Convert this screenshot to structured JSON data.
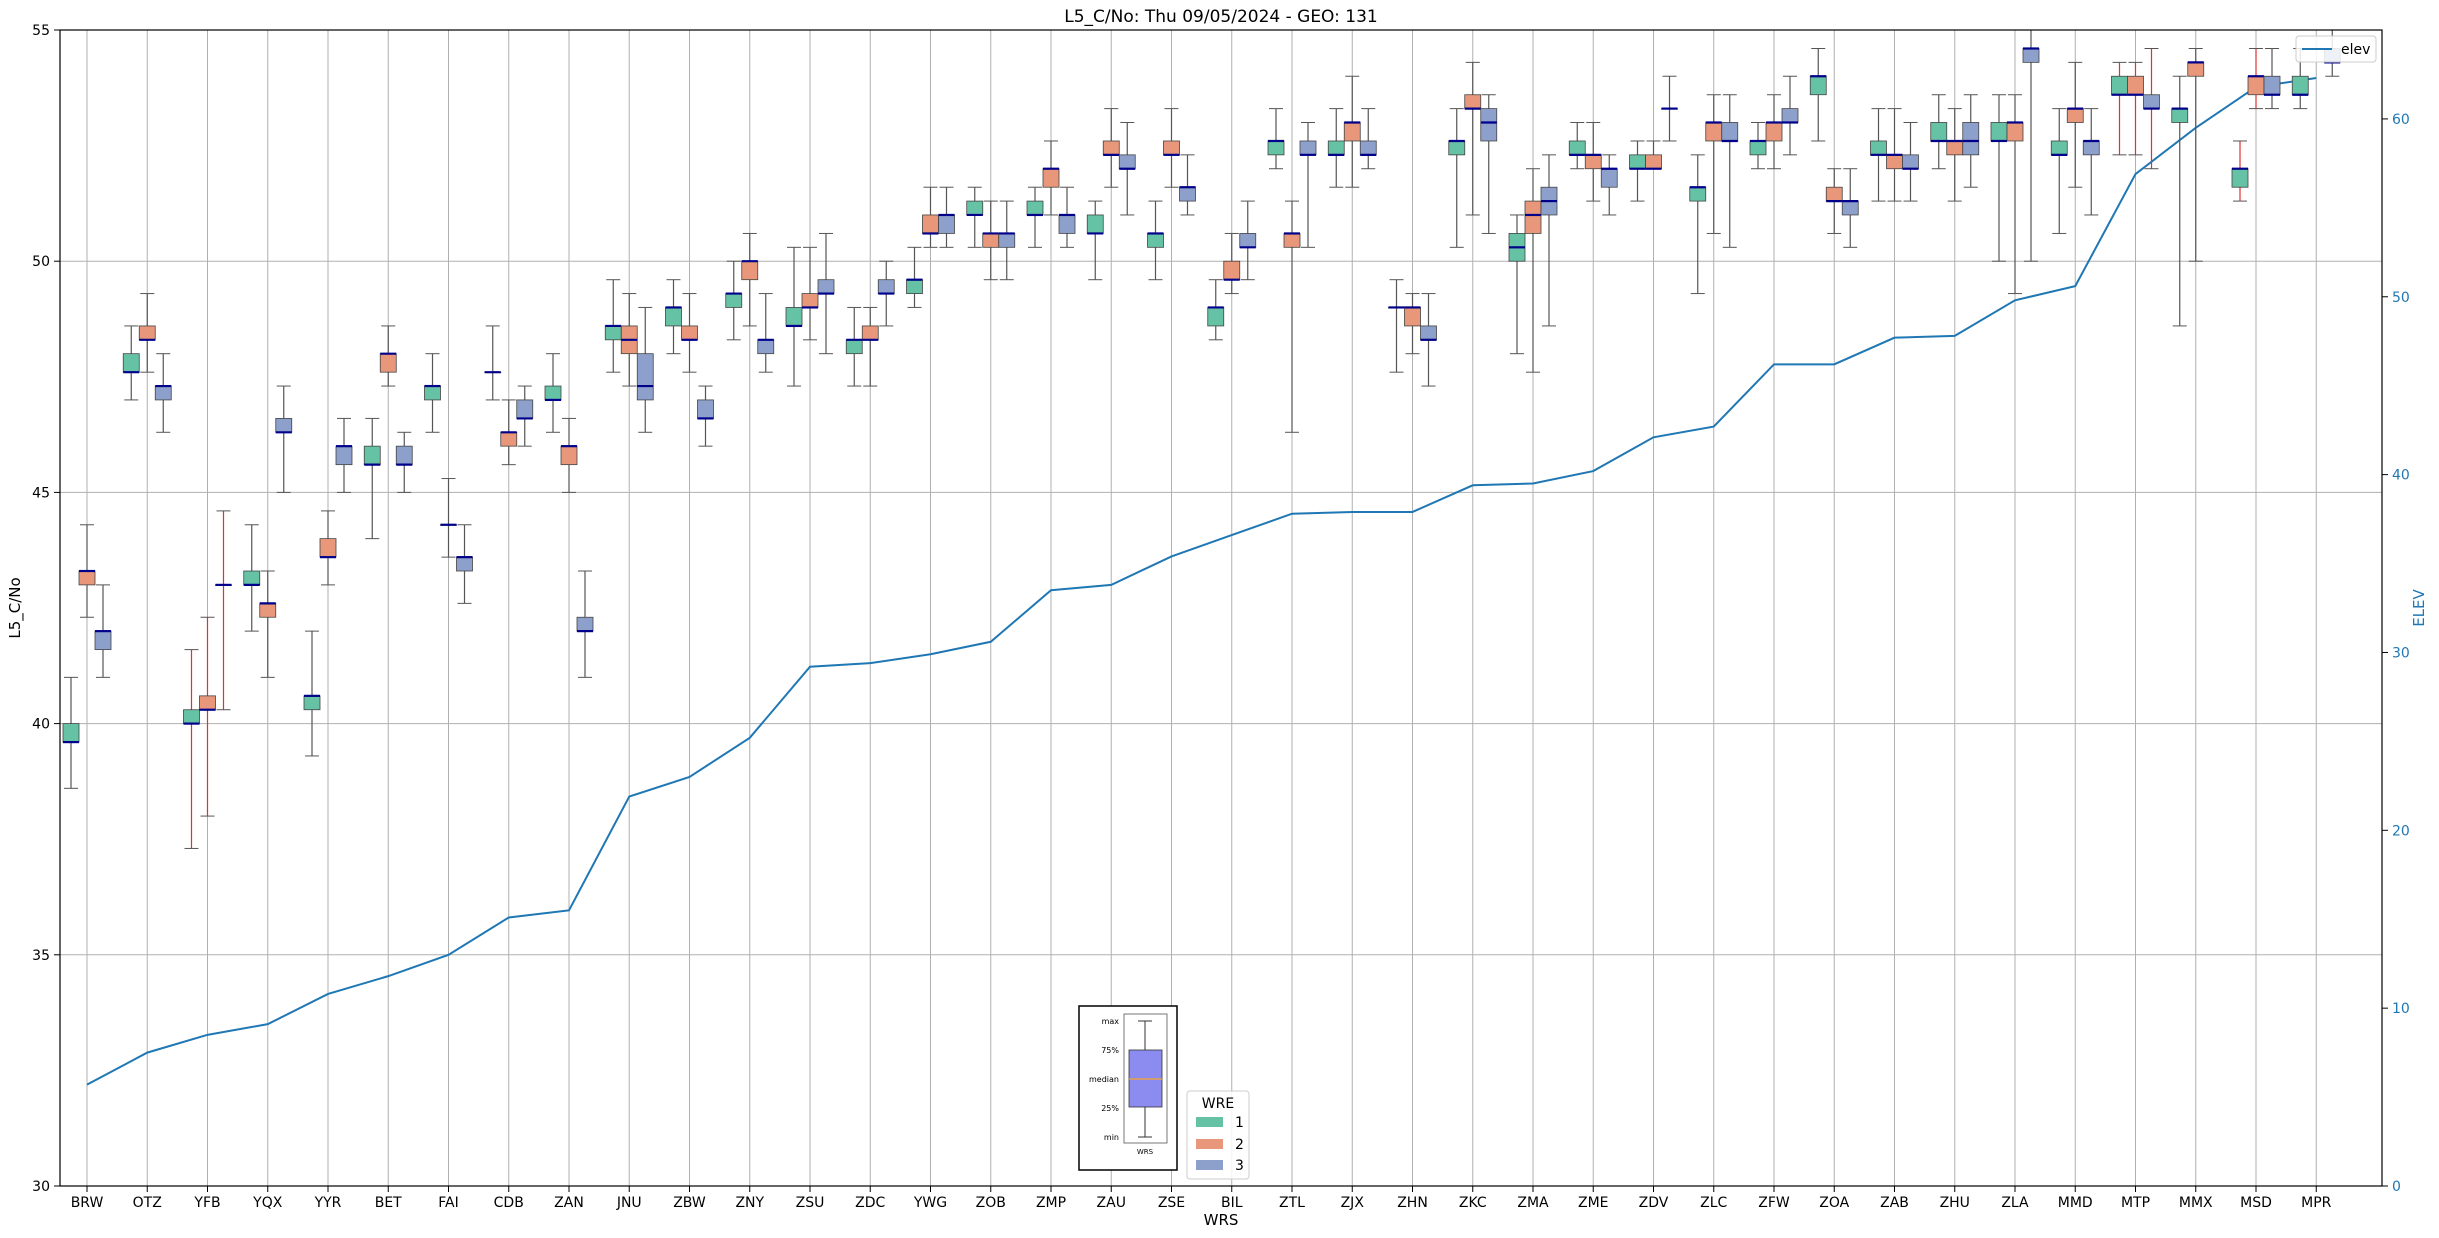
{
  "chart_data": {
    "type": "box",
    "title": "L5_C/No: Thu 09/05/2024 - GEO: 131",
    "xlabel": "WRS",
    "ylabel": "L5_C/No",
    "y2label": "ELEV",
    "ylim": [
      30,
      55
    ],
    "y2lim": [
      0,
      65
    ],
    "yticks": [
      30,
      35,
      40,
      45,
      50,
      55
    ],
    "y2ticks": [
      0,
      10,
      20,
      30,
      40,
      50,
      60
    ],
    "grid": true,
    "categories": [
      "BRW",
      "OTZ",
      "YFB",
      "YQX",
      "YYR",
      "BET",
      "FAI",
      "CDB",
      "ZAN",
      "JNU",
      "ZBW",
      "ZNY",
      "ZSU",
      "ZDC",
      "YWG",
      "ZOB",
      "ZMP",
      "ZAU",
      "ZSE",
      "BIL",
      "ZTL",
      "ZJX",
      "ZHN",
      "ZKC",
      "ZMA",
      "ZME",
      "ZDV",
      "ZLC",
      "ZFW",
      "ZOA",
      "ZAB",
      "ZHU",
      "ZLA",
      "MMD",
      "MTP",
      "MMX",
      "MSD",
      "MPR"
    ],
    "series": [
      {
        "name": "1",
        "color": "#66c2a5",
        "boxes": [
          {
            "min": 38.6,
            "q1": 39.6,
            "med": 39.6,
            "q3": 40.0,
            "max": 41.0
          },
          {
            "min": 47.0,
            "q1": 47.6,
            "med": 47.6,
            "q3": 48.0,
            "max": 48.6
          },
          {
            "min": 37.3,
            "q1": 40.0,
            "med": 40.0,
            "q3": 40.3,
            "max": 41.6,
            "whisker_color": "#e03030"
          },
          {
            "min": 42.0,
            "q1": 43.0,
            "med": 43.0,
            "q3": 43.3,
            "max": 44.3
          },
          {
            "min": 39.3,
            "q1": 40.3,
            "med": 40.6,
            "q3": 40.6,
            "max": 42.0
          },
          {
            "min": 44.0,
            "q1": 45.6,
            "med": 45.6,
            "q3": 46.0,
            "max": 46.6
          },
          {
            "min": 46.3,
            "q1": 47.0,
            "med": 47.3,
            "q3": 47.3,
            "max": 48.0
          },
          {
            "min": 47.0,
            "q1": 47.6,
            "med": 47.6,
            "q3": 47.6,
            "max": 48.6
          },
          {
            "min": 46.3,
            "q1": 47.0,
            "med": 47.0,
            "q3": 47.3,
            "max": 48.0
          },
          {
            "min": 47.6,
            "q1": 48.3,
            "med": 48.6,
            "q3": 48.6,
            "max": 49.6
          },
          {
            "min": 48.0,
            "q1": 48.6,
            "med": 49.0,
            "q3": 49.0,
            "max": 49.6
          },
          {
            "min": 48.3,
            "q1": 49.0,
            "med": 49.3,
            "q3": 49.3,
            "max": 50.0
          },
          {
            "min": 47.3,
            "q1": 48.6,
            "med": 48.6,
            "q3": 49.0,
            "max": 50.3
          },
          {
            "min": 47.3,
            "q1": 48.0,
            "med": 48.3,
            "q3": 48.3,
            "max": 49.0
          },
          {
            "min": 49.0,
            "q1": 49.3,
            "med": 49.6,
            "q3": 49.6,
            "max": 50.3
          },
          {
            "min": 50.3,
            "q1": 51.0,
            "med": 51.0,
            "q3": 51.3,
            "max": 51.6
          },
          {
            "min": 50.3,
            "q1": 51.0,
            "med": 51.0,
            "q3": 51.3,
            "max": 51.6
          },
          {
            "min": 49.6,
            "q1": 50.6,
            "med": 50.6,
            "q3": 51.0,
            "max": 51.3
          },
          {
            "min": 49.6,
            "q1": 50.3,
            "med": 50.6,
            "q3": 50.6,
            "max": 51.3
          },
          {
            "min": 48.3,
            "q1": 48.6,
            "med": 49.0,
            "q3": 49.0,
            "max": 49.6
          },
          {
            "min": 52.0,
            "q1": 52.3,
            "med": 52.6,
            "q3": 52.6,
            "max": 53.3
          },
          {
            "min": 51.6,
            "q1": 52.3,
            "med": 52.3,
            "q3": 52.6,
            "max": 53.3
          },
          {
            "min": 47.6,
            "q1": 49.0,
            "med": 49.0,
            "q3": 49.0,
            "max": 49.6
          },
          {
            "min": 50.3,
            "q1": 52.3,
            "med": 52.6,
            "q3": 52.6,
            "max": 53.3
          },
          {
            "min": 48.0,
            "q1": 50.0,
            "med": 50.3,
            "q3": 50.6,
            "max": 51.0
          },
          {
            "min": 52.0,
            "q1": 52.3,
            "med": 52.3,
            "q3": 52.6,
            "max": 53.0
          },
          {
            "min": 51.3,
            "q1": 52.0,
            "med": 52.0,
            "q3": 52.3,
            "max": 52.6
          },
          {
            "min": 49.3,
            "q1": 51.3,
            "med": 51.6,
            "q3": 51.6,
            "max": 52.3
          },
          {
            "min": 52.0,
            "q1": 52.3,
            "med": 52.6,
            "q3": 52.6,
            "max": 53.0
          },
          {
            "min": 52.6,
            "q1": 53.6,
            "med": 54.0,
            "q3": 54.0,
            "max": 54.6
          },
          {
            "min": 51.3,
            "q1": 52.3,
            "med": 52.3,
            "q3": 52.6,
            "max": 53.3
          },
          {
            "min": 52.0,
            "q1": 52.6,
            "med": 52.6,
            "q3": 53.0,
            "max": 53.6
          },
          {
            "min": 50.0,
            "q1": 52.6,
            "med": 52.6,
            "q3": 53.0,
            "max": 53.6
          },
          {
            "min": 50.6,
            "q1": 52.3,
            "med": 52.3,
            "q3": 52.6,
            "max": 53.3
          },
          {
            "min": 52.3,
            "q1": 53.6,
            "med": 53.6,
            "q3": 54.0,
            "max": 54.3,
            "whisker_color": "#e03030"
          },
          {
            "min": 48.6,
            "q1": 53.0,
            "med": 53.3,
            "q3": 53.3,
            "max": 54.0
          },
          {
            "min": 51.3,
            "q1": 51.6,
            "med": 52.0,
            "q3": 52.0,
            "max": 52.6,
            "whisker_color": "#e03030"
          },
          {
            "min": 53.3,
            "q1": 53.6,
            "med": 53.6,
            "q3": 54.0,
            "max": 54.6
          }
        ]
      },
      {
        "name": "2",
        "color": "#e8977a",
        "boxes": [
          {
            "min": 42.3,
            "q1": 43.0,
            "med": 43.3,
            "q3": 43.3,
            "max": 44.3
          },
          {
            "min": 47.6,
            "q1": 48.3,
            "med": 48.3,
            "q3": 48.6,
            "max": 49.3
          },
          {
            "min": 38.0,
            "q1": 40.3,
            "med": 40.3,
            "q3": 40.6,
            "max": 42.3,
            "whisker_color": "#e03030"
          },
          {
            "min": 41.0,
            "q1": 42.3,
            "med": 42.6,
            "q3": 42.6,
            "max": 43.3
          },
          {
            "min": 43.0,
            "q1": 43.6,
            "med": 43.6,
            "q3": 44.0,
            "max": 44.6
          },
          {
            "min": 47.3,
            "q1": 47.6,
            "med": 48.0,
            "q3": 48.0,
            "max": 48.6
          },
          {
            "min": 43.6,
            "q1": 44.3,
            "med": 44.3,
            "q3": 44.3,
            "max": 45.3
          },
          {
            "min": 45.6,
            "q1": 46.0,
            "med": 46.3,
            "q3": 46.3,
            "max": 47.0
          },
          {
            "min": 45.0,
            "q1": 45.6,
            "med": 46.0,
            "q3": 46.0,
            "max": 46.6
          },
          {
            "min": 47.3,
            "q1": 48.0,
            "med": 48.3,
            "q3": 48.6,
            "max": 49.3
          },
          {
            "min": 47.6,
            "q1": 48.3,
            "med": 48.3,
            "q3": 48.6,
            "max": 49.3
          },
          {
            "min": 48.6,
            "q1": 49.6,
            "med": 50.0,
            "q3": 50.0,
            "max": 50.6
          },
          {
            "min": 48.3,
            "q1": 49.0,
            "med": 49.0,
            "q3": 49.3,
            "max": 50.3
          },
          {
            "min": 47.3,
            "q1": 48.3,
            "med": 48.3,
            "q3": 48.6,
            "max": 49.0
          },
          {
            "min": 50.3,
            "q1": 50.6,
            "med": 50.6,
            "q3": 51.0,
            "max": 51.6
          },
          {
            "min": 49.6,
            "q1": 50.3,
            "med": 50.6,
            "q3": 50.6,
            "max": 51.3
          },
          {
            "min": 51.0,
            "q1": 51.6,
            "med": 52.0,
            "q3": 52.0,
            "max": 52.6
          },
          {
            "min": 51.6,
            "q1": 52.3,
            "med": 52.3,
            "q3": 52.6,
            "max": 53.3
          },
          {
            "min": 51.6,
            "q1": 52.3,
            "med": 52.3,
            "q3": 52.6,
            "max": 53.3
          },
          {
            "min": 49.3,
            "q1": 49.6,
            "med": 49.6,
            "q3": 50.0,
            "max": 50.6
          },
          {
            "min": 46.3,
            "q1": 50.3,
            "med": 50.6,
            "q3": 50.6,
            "max": 51.3
          },
          {
            "min": 51.6,
            "q1": 52.6,
            "med": 53.0,
            "q3": 53.0,
            "max": 54.0
          },
          {
            "min": 48.0,
            "q1": 48.6,
            "med": 49.0,
            "q3": 49.0,
            "max": 49.3
          },
          {
            "min": 51.0,
            "q1": 53.3,
            "med": 53.3,
            "q3": 53.6,
            "max": 54.3
          },
          {
            "min": 47.6,
            "q1": 50.6,
            "med": 51.0,
            "q3": 51.3,
            "max": 52.0
          },
          {
            "min": 51.3,
            "q1": 52.0,
            "med": 52.3,
            "q3": 52.3,
            "max": 53.0
          },
          {
            "min": 52.0,
            "q1": 52.0,
            "med": 52.0,
            "q3": 52.3,
            "max": 52.6
          },
          {
            "min": 50.6,
            "q1": 52.6,
            "med": 53.0,
            "q3": 53.0,
            "max": 53.6
          },
          {
            "min": 52.0,
            "q1": 52.6,
            "med": 53.0,
            "q3": 53.0,
            "max": 53.6
          },
          {
            "min": 50.6,
            "q1": 51.3,
            "med": 51.3,
            "q3": 51.6,
            "max": 52.0
          },
          {
            "min": 51.3,
            "q1": 52.0,
            "med": 52.3,
            "q3": 52.3,
            "max": 53.3
          },
          {
            "min": 51.3,
            "q1": 52.3,
            "med": 52.6,
            "q3": 52.6,
            "max": 53.3
          },
          {
            "min": 49.3,
            "q1": 52.6,
            "med": 53.0,
            "q3": 53.0,
            "max": 53.6
          },
          {
            "min": 51.6,
            "q1": 53.0,
            "med": 53.3,
            "q3": 53.3,
            "max": 54.3
          },
          {
            "min": 52.3,
            "q1": 53.6,
            "med": 53.6,
            "q3": 54.0,
            "max": 54.3,
            "whisker_color": "#e03030"
          },
          {
            "min": 50.0,
            "q1": 54.0,
            "med": 54.3,
            "q3": 54.3,
            "max": 54.6
          },
          {
            "min": 53.3,
            "q1": 53.6,
            "med": 54.0,
            "q3": 54.0,
            "max": 54.6,
            "whisker_color": "#e03030"
          },
          null
        ]
      },
      {
        "name": "3",
        "color": "#8da0cb",
        "boxes": [
          {
            "min": 41.0,
            "q1": 41.6,
            "med": 42.0,
            "q3": 42.0,
            "max": 43.0
          },
          {
            "min": 46.3,
            "q1": 47.0,
            "med": 47.3,
            "q3": 47.3,
            "max": 48.0
          },
          {
            "min": 40.3,
            "q1": 43.0,
            "med": 43.0,
            "q3": 43.0,
            "max": 44.6,
            "whisker_color": "#e03030"
          },
          {
            "min": 45.0,
            "q1": 46.3,
            "med": 46.3,
            "q3": 46.6,
            "max": 47.3
          },
          {
            "min": 45.0,
            "q1": 45.6,
            "med": 46.0,
            "q3": 46.0,
            "max": 46.6
          },
          {
            "min": 45.0,
            "q1": 45.6,
            "med": 45.6,
            "q3": 46.0,
            "max": 46.3
          },
          {
            "min": 42.6,
            "q1": 43.3,
            "med": 43.6,
            "q3": 43.6,
            "max": 44.3
          },
          {
            "min": 46.0,
            "q1": 46.6,
            "med": 46.6,
            "q3": 47.0,
            "max": 47.3
          },
          {
            "min": 41.0,
            "q1": 42.0,
            "med": 42.0,
            "q3": 42.3,
            "max": 43.3
          },
          {
            "min": 46.3,
            "q1": 47.0,
            "med": 47.3,
            "q3": 48.0,
            "max": 49.0
          },
          {
            "min": 46.0,
            "q1": 46.6,
            "med": 46.6,
            "q3": 47.0,
            "max": 47.3
          },
          {
            "min": 47.6,
            "q1": 48.0,
            "med": 48.3,
            "q3": 48.3,
            "max": 49.3
          },
          {
            "min": 48.0,
            "q1": 49.3,
            "med": 49.3,
            "q3": 49.6,
            "max": 50.6
          },
          {
            "min": 48.6,
            "q1": 49.3,
            "med": 49.3,
            "q3": 49.6,
            "max": 50.0
          },
          {
            "min": 50.3,
            "q1": 50.6,
            "med": 51.0,
            "q3": 51.0,
            "max": 51.6
          },
          {
            "min": 49.6,
            "q1": 50.3,
            "med": 50.6,
            "q3": 50.6,
            "max": 51.3
          },
          {
            "min": 50.3,
            "q1": 50.6,
            "med": 51.0,
            "q3": 51.0,
            "max": 51.6
          },
          {
            "min": 51.0,
            "q1": 52.0,
            "med": 52.0,
            "q3": 52.3,
            "max": 53.0
          },
          {
            "min": 51.0,
            "q1": 51.3,
            "med": 51.6,
            "q3": 51.6,
            "max": 52.3
          },
          {
            "min": 49.6,
            "q1": 50.3,
            "med": 50.3,
            "q3": 50.6,
            "max": 51.3
          },
          {
            "min": 50.3,
            "q1": 52.3,
            "med": 52.3,
            "q3": 52.6,
            "max": 53.0
          },
          {
            "min": 52.0,
            "q1": 52.3,
            "med": 52.3,
            "q3": 52.6,
            "max": 53.3
          },
          {
            "min": 47.3,
            "q1": 48.3,
            "med": 48.3,
            "q3": 48.6,
            "max": 49.3
          },
          {
            "min": 50.6,
            "q1": 52.6,
            "med": 53.0,
            "q3": 53.3,
            "max": 53.6
          },
          {
            "min": 48.6,
            "q1": 51.0,
            "med": 51.3,
            "q3": 51.6,
            "max": 52.3
          },
          {
            "min": 51.0,
            "q1": 51.6,
            "med": 52.0,
            "q3": 52.0,
            "max": 52.3
          },
          {
            "min": 52.6,
            "q1": 53.3,
            "med": 53.3,
            "q3": 53.3,
            "max": 54.0
          },
          {
            "min": 50.3,
            "q1": 52.6,
            "med": 52.6,
            "q3": 53.0,
            "max": 53.6
          },
          {
            "min": 52.3,
            "q1": 53.0,
            "med": 53.0,
            "q3": 53.3,
            "max": 54.0
          },
          {
            "min": 50.3,
            "q1": 51.0,
            "med": 51.3,
            "q3": 51.3,
            "max": 52.0
          },
          {
            "min": 51.3,
            "q1": 52.0,
            "med": 52.0,
            "q3": 52.3,
            "max": 53.0
          },
          {
            "min": 51.6,
            "q1": 52.3,
            "med": 52.6,
            "q3": 53.0,
            "max": 53.6
          },
          {
            "min": 50.0,
            "q1": 54.3,
            "med": 54.6,
            "q3": 54.6,
            "max": 55.0
          },
          {
            "min": 51.0,
            "q1": 52.3,
            "med": 52.6,
            "q3": 52.6,
            "max": 53.3
          },
          {
            "min": 52.0,
            "q1": 53.3,
            "med": 53.3,
            "q3": 53.6,
            "max": 54.6,
            "whisker_color": "#e03030"
          },
          null,
          {
            "min": 53.3,
            "q1": 53.6,
            "med": 53.6,
            "q3": 54.0,
            "max": 54.6
          },
          {
            "min": 54.0,
            "q1": 54.3,
            "med": 54.3,
            "q3": 54.6,
            "max": 55.0
          }
        ]
      }
    ],
    "elev": {
      "name": "elev",
      "color": "#1f77b4",
      "values": [
        5.7,
        7.5,
        8.5,
        9.1,
        10.8,
        11.8,
        13.0,
        15.1,
        15.5,
        21.9,
        23.0,
        25.2,
        29.2,
        29.4,
        29.9,
        30.6,
        33.5,
        33.8,
        35.4,
        36.6,
        37.8,
        37.9,
        37.9,
        39.4,
        39.5,
        40.2,
        42.1,
        42.7,
        46.2,
        46.2,
        47.7,
        47.8,
        49.8,
        50.6,
        56.9,
        59.5,
        61.8,
        62.3
      ]
    },
    "legend_elev": {
      "position": "upper right",
      "label": "elev"
    },
    "legend_wre": {
      "position": "lower center",
      "title": "WRE",
      "entries": [
        "1",
        "2",
        "3"
      ]
    },
    "boxplot_key": {
      "position": "lower center",
      "labels": [
        "max",
        "75%",
        "median",
        "25%",
        "min"
      ],
      "caption": "WRS",
      "fill_color": "#8c8cf0",
      "median_color": "#f5a623"
    }
  }
}
